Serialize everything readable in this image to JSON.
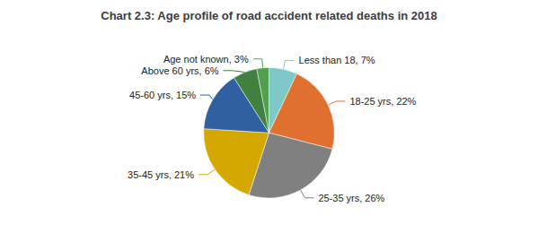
{
  "chart_data": {
    "type": "pie",
    "title": "Chart 2.3: Age profile of road accident related deaths in 2018",
    "categories": [
      "Less than 18",
      "18-25 yrs",
      "25-35 yrs",
      "35-45 yrs",
      "45-60 yrs",
      "Above 60 yrs",
      "Age not known"
    ],
    "values": [
      7,
      22,
      26,
      21,
      15,
      6,
      3
    ],
    "value_labels": [
      "Less than 18, 7%",
      "18-25 yrs, 22%",
      "25-35 yrs, 26%",
      "35-45 yrs, 21%",
      "45-60 yrs, 15%",
      "Above 60 yrs, 6%",
      "Age not known, 3%"
    ],
    "colors": [
      "#7ec8c8",
      "#e07030",
      "#808080",
      "#d4a800",
      "#3060a0",
      "#408040",
      "#50a050"
    ],
    "data_labels": true,
    "legend": false
  }
}
